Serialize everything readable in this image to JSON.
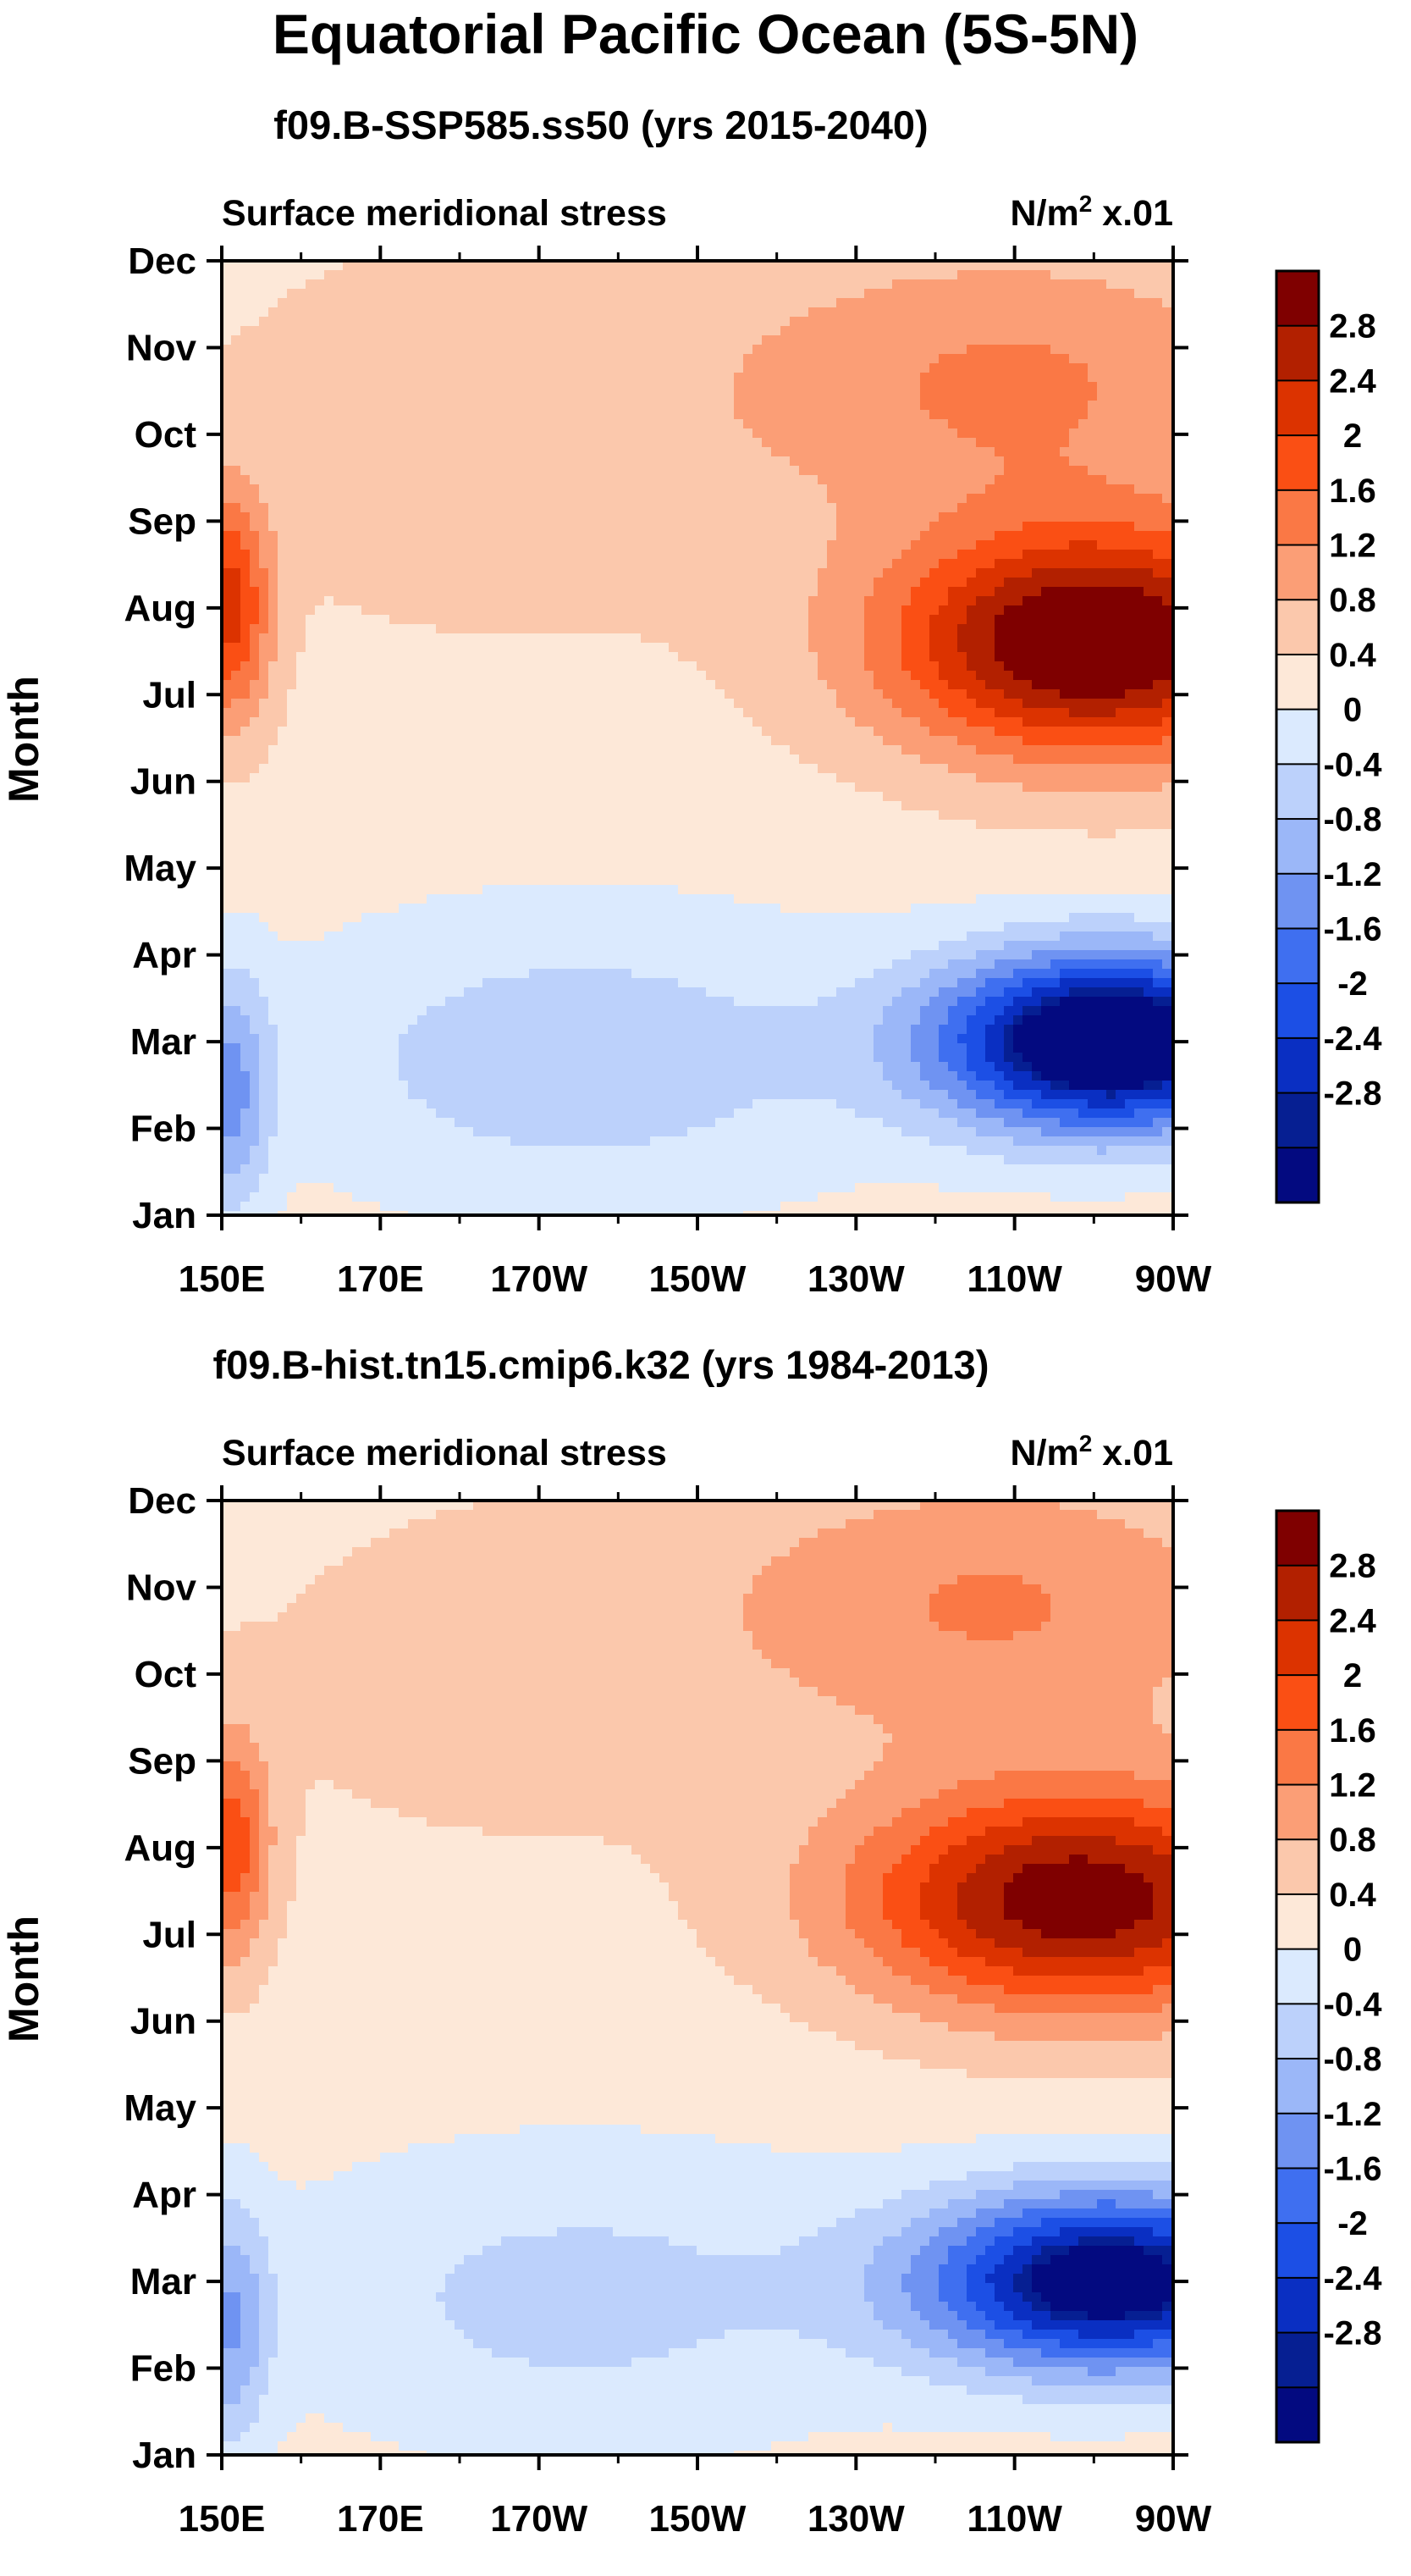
{
  "title": "Equatorial Pacific Ocean (5S-5N)",
  "colorbar": {
    "labels": [
      "2.8",
      "2.4",
      "2",
      "1.6",
      "1.2",
      "0.8",
      "0.4",
      "0",
      "-0.4",
      "-0.8",
      "-1.2",
      "-1.6",
      "-2",
      "-2.4",
      "-2.8"
    ],
    "colors": [
      "#7f0000",
      "#b22000",
      "#dc3300",
      "#fa4f14",
      "#fa7845",
      "#fb9e76",
      "#fbc8ac",
      "#fde8d8",
      "#dbeafe",
      "#bcd1fb",
      "#9bb7f8",
      "#6f93f2",
      "#3f6ff0",
      "#1c4fe5",
      "#0a2fc2",
      "#061f92",
      "#030a80"
    ]
  },
  "chart_data": [
    {
      "type": "heatmap",
      "subtitle": "f09.B-SSP585.ss50 (yrs 2015-2040)",
      "left_label": "Surface meridional stress",
      "units_base": "N/m",
      "units_sup": "2",
      "units_suffix": " x.01",
      "ylabel": "Month",
      "x_ticks": [
        "150E",
        "170E",
        "170W",
        "150W",
        "130W",
        "110W",
        "90W"
      ],
      "y_ticks": [
        "Jan",
        "Feb",
        "Mar",
        "Apr",
        "May",
        "Jun",
        "Jul",
        "Aug",
        "Sep",
        "Oct",
        "Nov",
        "Dec"
      ],
      "levels": [
        -3.0,
        -2.8,
        -2.4,
        -2.0,
        -1.6,
        -1.2,
        -0.8,
        -0.4,
        0,
        0.4,
        0.8,
        1.2,
        1.6,
        2.0,
        2.4,
        2.8
      ],
      "lon_range": [
        150,
        270
      ],
      "month_range": [
        1,
        12
      ]
    },
    {
      "type": "heatmap",
      "subtitle": "f09.B-hist.tn15.cmip6.k32 (yrs 1984-2013)",
      "left_label": "Surface meridional stress",
      "units_base": "N/m",
      "units_sup": "2",
      "units_suffix": " x.01",
      "ylabel": "Month",
      "x_ticks": [
        "150E",
        "170E",
        "170W",
        "150W",
        "130W",
        "110W",
        "90W"
      ],
      "y_ticks": [
        "Jan",
        "Feb",
        "Mar",
        "Apr",
        "May",
        "Jun",
        "Jul",
        "Aug",
        "Sep",
        "Oct",
        "Nov",
        "Dec"
      ],
      "levels": [
        -3.0,
        -2.8,
        -2.4,
        -2.0,
        -1.6,
        -1.2,
        -0.8,
        -0.4,
        0,
        0.4,
        0.8,
        1.2,
        1.6,
        2.0,
        2.4,
        2.8
      ],
      "lon_range": [
        150,
        270
      ],
      "month_range": [
        1,
        12
      ]
    }
  ]
}
